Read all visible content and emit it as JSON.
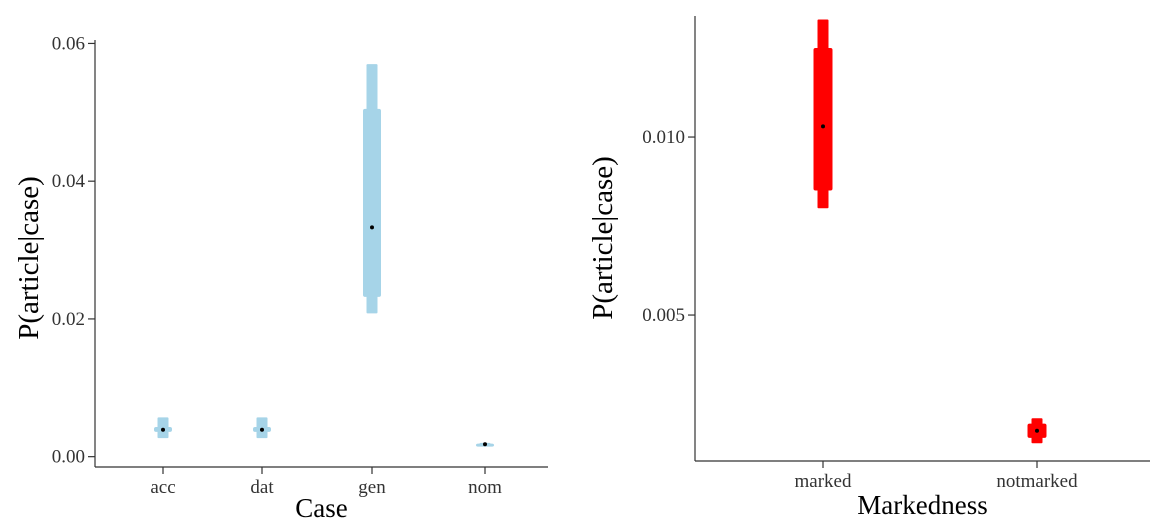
{
  "chart_data": [
    {
      "type": "interval",
      "xlabel": "Case",
      "ylabel": "P(article|case)",
      "ylim": [
        -0.0015,
        0.0605
      ],
      "yticks": [
        0.0,
        0.02,
        0.04,
        0.06
      ],
      "ytick_labels": [
        "0.00",
        "0.02",
        "0.04",
        "0.06"
      ],
      "categories": [
        "acc",
        "dat",
        "gen",
        "nom"
      ],
      "color": "#a6d4e8",
      "grid": false,
      "series": [
        {
          "values": [
            {
              "median": 0.0039,
              "inner": [
                0.0036,
                0.0043
              ],
              "outer": [
                0.0027,
                0.0057
              ]
            },
            {
              "median": 0.0039,
              "inner": [
                0.0036,
                0.0043
              ],
              "outer": [
                0.0027,
                0.0057
              ]
            },
            {
              "median": 0.0333,
              "inner": [
                0.0232,
                0.0505
              ],
              "outer": [
                0.0208,
                0.057
              ]
            },
            {
              "median": 0.0018,
              "inner": [
                0.0017,
                0.0019
              ],
              "outer": [
                0.0016,
                0.002
              ]
            }
          ]
        }
      ]
    },
    {
      "type": "interval",
      "xlabel": "Markedness",
      "ylabel": "P(article|case)",
      "ylim": [
        0.0009,
        0.0134
      ],
      "yticks": [
        0.005,
        0.01
      ],
      "ytick_labels": [
        "0.005",
        "0.010"
      ],
      "categories": [
        "marked",
        "notmarked"
      ],
      "color": "#ff0000",
      "grid": false,
      "series": [
        {
          "values": [
            {
              "median": 0.0103,
              "inner": [
                0.0085,
                0.0125
              ],
              "outer": [
                0.008,
                0.0133
              ]
            },
            {
              "median": 0.00175,
              "inner": [
                0.00155,
                0.00195
              ],
              "outer": [
                0.0014,
                0.0021
              ]
            }
          ]
        }
      ]
    }
  ]
}
